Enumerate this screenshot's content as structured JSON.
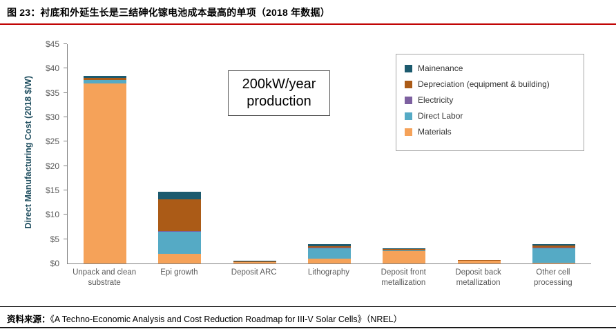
{
  "header": {
    "title": "图 23：衬底和外延生长是三结砷化镓电池成本最高的单项（2018 年数据）",
    "accent_color": "#C00000"
  },
  "annotation": {
    "text": "200kW/year production"
  },
  "footer": {
    "prefix": "资料来源：",
    "text": "《A Techno-Economic Analysis and Cost Reduction Roadmap for III-V Solar Cells》（NREL）"
  },
  "chart_data": {
    "type": "bar",
    "stacked": true,
    "title": "",
    "xlabel": "",
    "ylabel": "Direct Manufacturing Cost (2018 $/W)",
    "ylim": [
      0,
      45
    ],
    "yticks": [
      0,
      5,
      10,
      15,
      20,
      25,
      30,
      35,
      40,
      45
    ],
    "ytick_format": "$",
    "grid": false,
    "legend_position": "top-right",
    "categories": [
      "Unpack and clean substrate",
      "Epi growth",
      "Deposit ARC",
      "Lithography",
      "Deposit front metallization",
      "Deposit back metallization",
      "Other cell processing"
    ],
    "series": [
      {
        "name": "Mainenance",
        "color": "#1C5A6E",
        "values": [
          0.4,
          1.5,
          0.05,
          0.4,
          0.1,
          0.05,
          0.2
        ]
      },
      {
        "name": "Depreciation (equipment & building)",
        "color": "#AB5B17",
        "values": [
          0.4,
          6.5,
          0.1,
          0.4,
          0.3,
          0.15,
          0.5
        ]
      },
      {
        "name": "Electricity",
        "color": "#7D60A0",
        "values": [
          0.1,
          0.2,
          0.0,
          0.1,
          0.0,
          0.0,
          0.1
        ]
      },
      {
        "name": "Direct Labor",
        "color": "#55AAC5",
        "values": [
          0.6,
          4.5,
          0.1,
          2.1,
          0.2,
          0.05,
          2.9
        ]
      },
      {
        "name": "Materials",
        "color": "#F5A259",
        "values": [
          37.0,
          2.0,
          0.25,
          1.0,
          2.5,
          0.5,
          0.2
        ]
      }
    ]
  }
}
